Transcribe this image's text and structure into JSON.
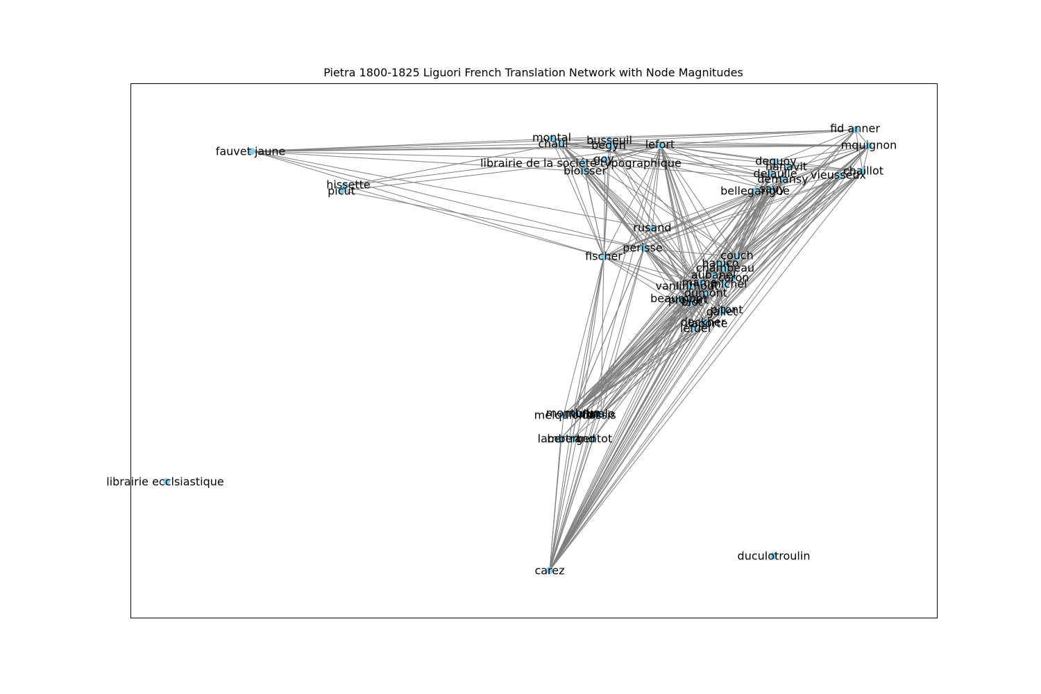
{
  "title": "Pietra 1800-1825 Liguori French Translation Network with Node Magnitudes",
  "colors": {
    "edge": "#808080",
    "node": "#87ceeb",
    "frame": "#000000",
    "label": "#000000"
  },
  "nodes": [
    {
      "id": "montal",
      "label": "montal"
    },
    {
      "id": "chaul",
      "label": "chaul"
    },
    {
      "id": "fauvet jaune",
      "label": "fauvet jaune"
    },
    {
      "id": "busseuil",
      "label": "busseuil"
    },
    {
      "id": "begyn",
      "label": "begyn"
    },
    {
      "id": "lefort",
      "label": "lefort"
    },
    {
      "id": "fid anner",
      "label": "fid anner"
    },
    {
      "id": "mquignon",
      "label": "mquignon"
    },
    {
      "id": "dequoy",
      "label": "dequoy"
    },
    {
      "id": "hanavit",
      "label": "hanavit"
    },
    {
      "id": "delaulle",
      "label": "delaulle"
    },
    {
      "id": "chaillot",
      "label": "chaillot"
    },
    {
      "id": "vieusseux",
      "label": "vieusseux"
    },
    {
      "id": "demansy",
      "label": "demansy"
    },
    {
      "id": "librairie de la societe typographique",
      "label": "librairie de la société typographique"
    },
    {
      "id": "goy",
      "label": "goy"
    },
    {
      "id": "bloisser",
      "label": "bloisser"
    },
    {
      "id": "hissette",
      "label": "hissette"
    },
    {
      "id": "picut",
      "label": "picut"
    },
    {
      "id": "bellegarigue",
      "label": "bellegarigue"
    },
    {
      "id": "savy",
      "label": "savy"
    },
    {
      "id": "rusand",
      "label": "rusand"
    },
    {
      "id": "perisse",
      "label": "perisse"
    },
    {
      "id": "fischer",
      "label": "fischer"
    },
    {
      "id": "couch",
      "label": "couch"
    },
    {
      "id": "hanico",
      "label": "hanico"
    },
    {
      "id": "chambeau",
      "label": "chambeau"
    },
    {
      "id": "aubanel",
      "label": "aubanel"
    },
    {
      "id": "caron",
      "label": "caron"
    },
    {
      "id": "mame",
      "label": "mame"
    },
    {
      "id": "vanlinthout",
      "label": "vanlinthout"
    },
    {
      "id": "michel",
      "label": "michel"
    },
    {
      "id": "dumont",
      "label": "dumont"
    },
    {
      "id": "beaumont",
      "label": "beaumont"
    },
    {
      "id": "proyart",
      "label": "proyart"
    },
    {
      "id": "blot",
      "label": "blot"
    },
    {
      "id": "pitont",
      "label": "pitont"
    },
    {
      "id": "gallet",
      "label": "gallet"
    },
    {
      "id": "deckher",
      "label": "deckher"
    },
    {
      "id": "laporte",
      "label": "laporte"
    },
    {
      "id": "lefuel",
      "label": "lefuel"
    },
    {
      "id": "montbrun",
      "label": "montbrun"
    },
    {
      "id": "muller",
      "label": "muller"
    },
    {
      "id": "malo",
      "label": "malo"
    },
    {
      "id": "melquiond",
      "label": "melquiond"
    },
    {
      "id": "dassis",
      "label": "dassis"
    },
    {
      "id": "lambert",
      "label": "lambert"
    },
    {
      "id": "bertrand",
      "label": "bertrand"
    },
    {
      "id": "gentot",
      "label": "gentot"
    },
    {
      "id": "librairie ecclsiastique",
      "label": "librairie ecclsiastique"
    },
    {
      "id": "duculotroulin",
      "label": "duculotroulin"
    },
    {
      "id": "carez",
      "label": "carez"
    }
  ],
  "edges": [
    [
      "fauvet jaune",
      "chaul"
    ],
    [
      "fauvet jaune",
      "montal"
    ],
    [
      "fauvet jaune",
      "lefort"
    ],
    [
      "fauvet jaune",
      "fid anner"
    ],
    [
      "fauvet jaune",
      "mquignon"
    ],
    [
      "fauvet jaune",
      "fischer"
    ],
    [
      "fauvet jaune",
      "goy"
    ],
    [
      "fauvet jaune",
      "begyn"
    ],
    [
      "fauvet jaune",
      "perisse"
    ],
    [
      "fauvet jaune",
      "rusand"
    ],
    [
      "fauvet jaune",
      "bloisser"
    ],
    [
      "hissette",
      "chaul"
    ],
    [
      "hissette",
      "lefort"
    ],
    [
      "hissette",
      "fischer"
    ],
    [
      "picut",
      "goy"
    ],
    [
      "picut",
      "perisse"
    ],
    [
      "chaul",
      "lefort"
    ],
    [
      "chaul",
      "fid anner"
    ],
    [
      "chaul",
      "mquignon"
    ],
    [
      "chaul",
      "chaillot"
    ],
    [
      "chaul",
      "demansy"
    ],
    [
      "chaul",
      "fischer"
    ],
    [
      "chaul",
      "rusand"
    ],
    [
      "chaul",
      "perisse"
    ],
    [
      "chaul",
      "mame"
    ],
    [
      "chaul",
      "blot"
    ],
    [
      "chaul",
      "dumont"
    ],
    [
      "chaul",
      "laporte"
    ],
    [
      "chaul",
      "vanlinthout"
    ],
    [
      "chaul",
      "couch"
    ],
    [
      "montal",
      "lefort"
    ],
    [
      "montal",
      "fid anner"
    ],
    [
      "montal",
      "fischer"
    ],
    [
      "montal",
      "savy"
    ],
    [
      "montal",
      "perisse"
    ],
    [
      "begyn",
      "lefort"
    ],
    [
      "begyn",
      "fischer"
    ],
    [
      "begyn",
      "mame"
    ],
    [
      "begyn",
      "caron"
    ],
    [
      "begyn",
      "demansy"
    ],
    [
      "busseuil",
      "lefort"
    ],
    [
      "busseuil",
      "fischer"
    ],
    [
      "busseuil",
      "mquignon"
    ],
    [
      "busseuil",
      "blot"
    ],
    [
      "goy",
      "lefort"
    ],
    [
      "goy",
      "fischer"
    ],
    [
      "goy",
      "mame"
    ],
    [
      "goy",
      "chaillot"
    ],
    [
      "goy",
      "couch"
    ],
    [
      "bloisser",
      "lefort"
    ],
    [
      "bloisser",
      "fischer"
    ],
    [
      "bloisser",
      "perisse"
    ],
    [
      "bloisser",
      "dumont"
    ],
    [
      "librairie de la societe typographique",
      "lefort"
    ],
    [
      "librairie de la societe typographique",
      "fischer"
    ],
    [
      "librairie de la societe typographique",
      "mame"
    ],
    [
      "librairie de la societe typographique",
      "blot"
    ],
    [
      "librairie de la societe typographique",
      "demansy"
    ],
    [
      "lefort",
      "fid anner"
    ],
    [
      "lefort",
      "mquignon"
    ],
    [
      "lefort",
      "chaillot"
    ],
    [
      "lefort",
      "dequoy"
    ],
    [
      "lefort",
      "demansy"
    ],
    [
      "lefort",
      "savy"
    ],
    [
      "lefort",
      "rusand"
    ],
    [
      "lefort",
      "perisse"
    ],
    [
      "lefort",
      "fischer"
    ],
    [
      "lefort",
      "couch"
    ],
    [
      "lefort",
      "mame"
    ],
    [
      "lefort",
      "dumont"
    ],
    [
      "lefort",
      "blot"
    ],
    [
      "lefort",
      "gallet"
    ],
    [
      "lefort",
      "laporte"
    ],
    [
      "lefort",
      "lefuel"
    ],
    [
      "lefort",
      "pitont"
    ],
    [
      "lefort",
      "vanlinthout"
    ],
    [
      "lefort",
      "caron"
    ],
    [
      "lefort",
      "montbrun"
    ],
    [
      "lefort",
      "carez"
    ],
    [
      "fid anner",
      "mquignon"
    ],
    [
      "fid anner",
      "chaillot"
    ],
    [
      "fid anner",
      "dequoy"
    ],
    [
      "fid anner",
      "savy"
    ],
    [
      "fid anner",
      "couch"
    ],
    [
      "fid anner",
      "mame"
    ],
    [
      "fid anner",
      "dumont"
    ],
    [
      "fid anner",
      "laporte"
    ],
    [
      "mquignon",
      "chaillot"
    ],
    [
      "mquignon",
      "dequoy"
    ],
    [
      "mquignon",
      "delaulle"
    ],
    [
      "mquignon",
      "savy"
    ],
    [
      "mquignon",
      "couch"
    ],
    [
      "mquignon",
      "mame"
    ],
    [
      "mquignon",
      "blot"
    ],
    [
      "mquignon",
      "dumont"
    ],
    [
      "mquignon",
      "gallet"
    ],
    [
      "mquignon",
      "laporte"
    ],
    [
      "mquignon",
      "lefuel"
    ],
    [
      "mquignon",
      "montbrun"
    ],
    [
      "mquignon",
      "carez"
    ],
    [
      "mquignon",
      "fischer"
    ],
    [
      "mquignon",
      "perisse"
    ],
    [
      "chaillot",
      "vieusseux"
    ],
    [
      "chaillot",
      "savy"
    ],
    [
      "chaillot",
      "couch"
    ],
    [
      "chaillot",
      "mame"
    ],
    [
      "chaillot",
      "blot"
    ],
    [
      "chaillot",
      "dumont"
    ],
    [
      "chaillot",
      "gallet"
    ],
    [
      "chaillot",
      "laporte"
    ],
    [
      "chaillot",
      "lefuel"
    ],
    [
      "chaillot",
      "montbrun"
    ],
    [
      "chaillot",
      "malo"
    ],
    [
      "chaillot",
      "carez"
    ],
    [
      "chaillot",
      "fischer"
    ],
    [
      "chaillot",
      "perisse"
    ],
    [
      "vieusseux",
      "couch"
    ],
    [
      "vieusseux",
      "mame"
    ],
    [
      "vieusseux",
      "blot"
    ],
    [
      "vieusseux",
      "laporte"
    ],
    [
      "vieusseux",
      "montbrun"
    ],
    [
      "vieusseux",
      "carez"
    ],
    [
      "dequoy",
      "couch"
    ],
    [
      "dequoy",
      "mame"
    ],
    [
      "dequoy",
      "laporte"
    ],
    [
      "dequoy",
      "montbrun"
    ],
    [
      "hanavit",
      "couch"
    ],
    [
      "hanavit",
      "mame"
    ],
    [
      "hanavit",
      "dumont"
    ],
    [
      "hanavit",
      "montbrun"
    ],
    [
      "delaulle",
      "couch"
    ],
    [
      "delaulle",
      "blot"
    ],
    [
      "delaulle",
      "laporte"
    ],
    [
      "delaulle",
      "montbrun"
    ],
    [
      "delaulle",
      "carez"
    ],
    [
      "demansy",
      "couch"
    ],
    [
      "demansy",
      "mame"
    ],
    [
      "demansy",
      "dumont"
    ],
    [
      "demansy",
      "laporte"
    ],
    [
      "demansy",
      "montbrun"
    ],
    [
      "demansy",
      "fischer"
    ],
    [
      "savy",
      "couch"
    ],
    [
      "savy",
      "mame"
    ],
    [
      "savy",
      "blot"
    ],
    [
      "savy",
      "dumont"
    ],
    [
      "savy",
      "gallet"
    ],
    [
      "savy",
      "laporte"
    ],
    [
      "savy",
      "lefuel"
    ],
    [
      "savy",
      "montbrun"
    ],
    [
      "savy",
      "malo"
    ],
    [
      "savy",
      "carez"
    ],
    [
      "savy",
      "fischer"
    ],
    [
      "savy",
      "perisse"
    ],
    [
      "bellegarigue",
      "couch"
    ],
    [
      "bellegarigue",
      "mame"
    ],
    [
      "bellegarigue",
      "laporte"
    ],
    [
      "bellegarigue",
      "montbrun"
    ],
    [
      "bellegarigue",
      "fischer"
    ],
    [
      "bellegarigue",
      "rusand"
    ],
    [
      "rusand",
      "perisse"
    ],
    [
      "rusand",
      "mame"
    ],
    [
      "rusand",
      "dumont"
    ],
    [
      "rusand",
      "laporte"
    ],
    [
      "rusand",
      "fischer"
    ],
    [
      "rusand",
      "montbrun"
    ],
    [
      "perisse",
      "fischer"
    ],
    [
      "perisse",
      "couch"
    ],
    [
      "perisse",
      "mame"
    ],
    [
      "perisse",
      "blot"
    ],
    [
      "perisse",
      "dumont"
    ],
    [
      "perisse",
      "gallet"
    ],
    [
      "perisse",
      "laporte"
    ],
    [
      "perisse",
      "lefuel"
    ],
    [
      "perisse",
      "pitont"
    ],
    [
      "perisse",
      "montbrun"
    ],
    [
      "perisse",
      "malo"
    ],
    [
      "perisse",
      "carez"
    ],
    [
      "perisse",
      "vanlinthout"
    ],
    [
      "fischer",
      "mame"
    ],
    [
      "fischer",
      "dumont"
    ],
    [
      "fischer",
      "blot"
    ],
    [
      "fischer",
      "laporte"
    ],
    [
      "fischer",
      "montbrun"
    ],
    [
      "fischer",
      "muller"
    ],
    [
      "fischer",
      "malo"
    ],
    [
      "fischer",
      "melquiond"
    ],
    [
      "fischer",
      "carez"
    ],
    [
      "fischer",
      "bertrand"
    ],
    [
      "couch",
      "montbrun"
    ],
    [
      "couch",
      "malo"
    ],
    [
      "couch",
      "carez"
    ],
    [
      "couch",
      "muller"
    ],
    [
      "couch",
      "mame"
    ],
    [
      "hanico",
      "montbrun"
    ],
    [
      "hanico",
      "carez"
    ],
    [
      "chambeau",
      "montbrun"
    ],
    [
      "chambeau",
      "carez"
    ],
    [
      "aubanel",
      "montbrun"
    ],
    [
      "aubanel",
      "melquiond"
    ],
    [
      "aubanel",
      "carez"
    ],
    [
      "caron",
      "montbrun"
    ],
    [
      "caron",
      "carez"
    ],
    [
      "mame",
      "montbrun"
    ],
    [
      "mame",
      "muller"
    ],
    [
      "mame",
      "malo"
    ],
    [
      "mame",
      "dassis"
    ],
    [
      "mame",
      "melquiond"
    ],
    [
      "mame",
      "carez"
    ],
    [
      "mame",
      "lambert"
    ],
    [
      "mame",
      "bertrand"
    ],
    [
      "mame",
      "gentot"
    ],
    [
      "vanlinthout",
      "montbrun"
    ],
    [
      "vanlinthout",
      "carez"
    ],
    [
      "michel",
      "montbrun"
    ],
    [
      "michel",
      "carez"
    ],
    [
      "dumont",
      "montbrun"
    ],
    [
      "dumont",
      "muller"
    ],
    [
      "dumont",
      "malo"
    ],
    [
      "dumont",
      "carez"
    ],
    [
      "dumont",
      "gentot"
    ],
    [
      "beaumont",
      "montbrun"
    ],
    [
      "beaumont",
      "carez"
    ],
    [
      "proyart",
      "montbrun"
    ],
    [
      "proyart",
      "carez"
    ],
    [
      "blot",
      "montbrun"
    ],
    [
      "blot",
      "muller"
    ],
    [
      "blot",
      "malo"
    ],
    [
      "blot",
      "carez"
    ],
    [
      "blot",
      "lambert"
    ],
    [
      "pitont",
      "montbrun"
    ],
    [
      "pitont",
      "carez"
    ],
    [
      "gallet",
      "montbrun"
    ],
    [
      "gallet",
      "carez"
    ],
    [
      "gallet",
      "malo"
    ],
    [
      "deckher",
      "montbrun"
    ],
    [
      "deckher",
      "carez"
    ],
    [
      "laporte",
      "montbrun"
    ],
    [
      "laporte",
      "malo"
    ],
    [
      "laporte",
      "carez"
    ],
    [
      "laporte",
      "muller"
    ],
    [
      "laporte",
      "bertrand"
    ],
    [
      "lefuel",
      "montbrun"
    ],
    [
      "lefuel",
      "carez"
    ],
    [
      "lefuel",
      "malo"
    ],
    [
      "montbrun",
      "carez"
    ],
    [
      "muller",
      "carez"
    ],
    [
      "malo",
      "carez"
    ],
    [
      "melquiond",
      "carez"
    ],
    [
      "dassis",
      "carez"
    ],
    [
      "lambert",
      "carez"
    ],
    [
      "bertrand",
      "carez"
    ],
    [
      "gentot",
      "carez"
    ]
  ]
}
